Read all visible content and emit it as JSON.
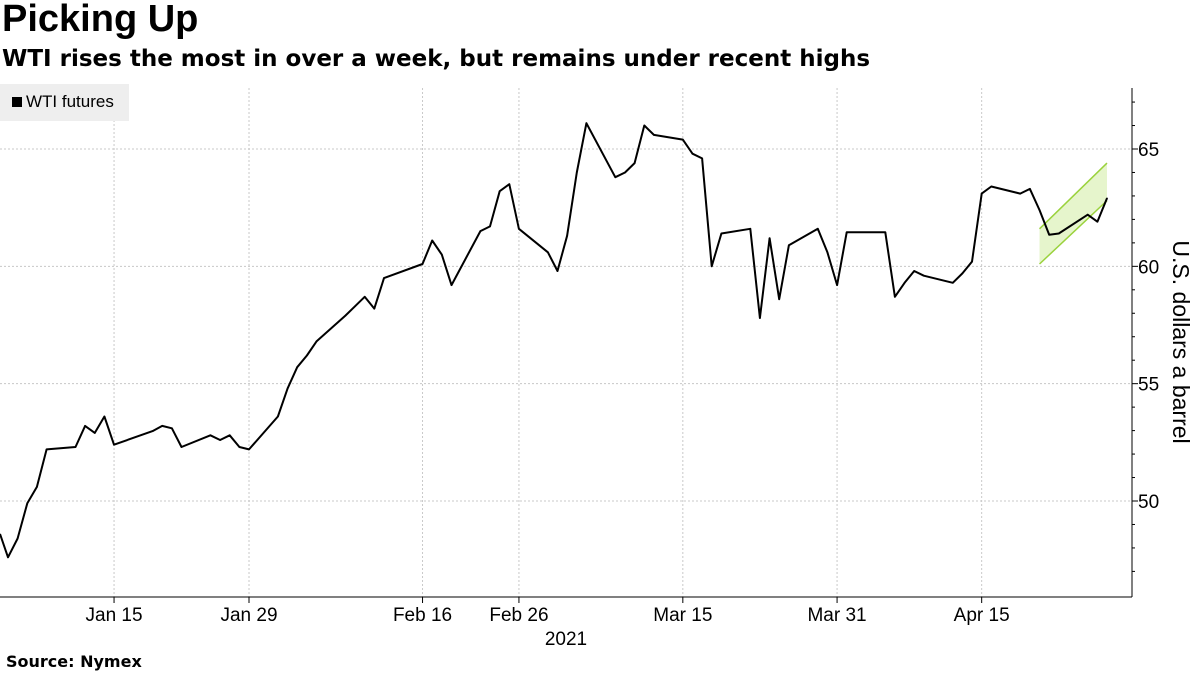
{
  "title": "Picking Up",
  "subtitle": "WTI rises the most in over a week, but remains under recent highs",
  "source": "Source: Nymex",
  "legend": {
    "label": "WTI futures"
  },
  "colors": {
    "line": "#000000",
    "channel_fill": "#e6f5cc",
    "channel_stroke": "#9ad23c",
    "grid": "#c8c8c8"
  },
  "chart_data": {
    "type": "line",
    "title": "Picking Up",
    "subtitle": "WTI rises the most in over a week, but remains under recent highs",
    "ylabel": "U.S. dollars a barrel",
    "xlabel": "",
    "year_label": "2021",
    "ylim": [
      46,
      68
    ],
    "x_ticks": [
      "2021-01-15",
      "2021-01-29",
      "2021-02-16",
      "2021-02-26",
      "2021-03-15",
      "2021-03-31",
      "2021-04-15"
    ],
    "x_tick_labels": [
      "Jan 15",
      "Jan 29",
      "Feb 16",
      "Feb 26",
      "Mar 15",
      "Mar 31",
      "Apr 15"
    ],
    "y_ticks": [
      50,
      55,
      60,
      65
    ],
    "grid": true,
    "legend_position": "top-left",
    "series": [
      {
        "name": "WTI futures",
        "x": [
          "2021-01-04",
          "2021-01-05",
          "2021-01-06",
          "2021-01-07",
          "2021-01-08",
          "2021-01-11",
          "2021-01-12",
          "2021-01-13",
          "2021-01-14",
          "2021-01-15",
          "2021-01-19",
          "2021-01-20",
          "2021-01-21",
          "2021-01-22",
          "2021-01-25",
          "2021-01-26",
          "2021-01-27",
          "2021-01-28",
          "2021-01-29",
          "2021-02-01",
          "2021-02-02",
          "2021-02-03",
          "2021-02-04",
          "2021-02-05",
          "2021-02-08",
          "2021-02-09",
          "2021-02-10",
          "2021-02-11",
          "2021-02-12",
          "2021-02-16",
          "2021-02-17",
          "2021-02-18",
          "2021-02-19",
          "2021-02-22",
          "2021-02-23",
          "2021-02-24",
          "2021-02-25",
          "2021-02-26",
          "2021-03-01",
          "2021-03-02",
          "2021-03-03",
          "2021-03-04",
          "2021-03-05",
          "2021-03-08",
          "2021-03-09",
          "2021-03-10",
          "2021-03-11",
          "2021-03-12",
          "2021-03-15",
          "2021-03-16",
          "2021-03-17",
          "2021-03-18",
          "2021-03-19",
          "2021-03-22",
          "2021-03-23",
          "2021-03-24",
          "2021-03-25",
          "2021-03-26",
          "2021-03-29",
          "2021-03-30",
          "2021-03-31",
          "2021-04-01",
          "2021-04-05",
          "2021-04-06",
          "2021-04-07",
          "2021-04-08",
          "2021-04-09",
          "2021-04-12",
          "2021-04-13",
          "2021-04-14",
          "2021-04-15",
          "2021-04-16",
          "2021-04-19",
          "2021-04-20",
          "2021-04-21",
          "2021-04-22",
          "2021-04-23",
          "2021-04-26",
          "2021-04-27",
          "2021-04-28"
        ],
        "values": [
          47.6,
          48.4,
          49.9,
          50.6,
          52.2,
          52.3,
          53.2,
          52.9,
          53.6,
          52.4,
          52.98,
          53.2,
          53.1,
          52.3,
          52.8,
          52.6,
          52.8,
          52.3,
          52.2,
          53.6,
          54.8,
          55.7,
          56.2,
          56.8,
          57.9,
          58.3,
          58.7,
          58.2,
          59.5,
          60.1,
          61.1,
          60.5,
          59.2,
          61.5,
          61.7,
          63.2,
          63.5,
          61.6,
          60.6,
          59.8,
          61.3,
          64.0,
          66.1,
          63.8,
          64.0,
          64.4,
          66.0,
          65.6,
          65.4,
          64.8,
          64.6,
          60.0,
          61.4,
          61.6,
          57.8,
          61.2,
          58.6,
          60.9,
          61.6,
          60.6,
          59.2,
          61.45,
          61.45,
          58.7,
          59.3,
          59.8,
          59.6,
          59.3,
          59.7,
          60.2,
          63.1,
          63.4,
          63.1,
          63.3,
          62.4,
          61.35,
          61.4,
          62.2,
          61.9,
          62.9
        ]
      }
    ],
    "channel": {
      "x": [
        "2021-04-21",
        "2021-04-28"
      ],
      "lower": [
        60.1,
        62.8
      ],
      "upper": [
        61.6,
        64.4
      ]
    }
  }
}
